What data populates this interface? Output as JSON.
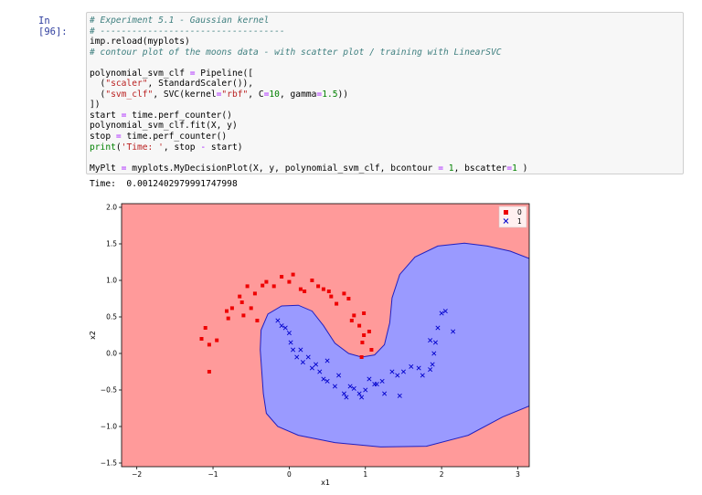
{
  "cell": {
    "prompt": "In [96]:",
    "code_lines": [
      {
        "tokens": [
          {
            "t": "# Experiment 5.1 - Gaussian kernel",
            "c": "cm"
          }
        ]
      },
      {
        "tokens": [
          {
            "t": "# -----------------------------------",
            "c": "cm"
          }
        ]
      },
      {
        "tokens": [
          {
            "t": "imp.reload(myplots)",
            "c": ""
          }
        ]
      },
      {
        "tokens": [
          {
            "t": "# contour plot of the moons data - with scatter plot / training with LinearSVC",
            "c": "cm"
          }
        ]
      },
      {
        "tokens": [
          {
            "t": "",
            "c": ""
          }
        ]
      },
      {
        "tokens": [
          {
            "t": "polynomial_svm_clf ",
            "c": ""
          },
          {
            "t": "=",
            "c": "op"
          },
          {
            "t": " Pipeline([",
            "c": ""
          }
        ]
      },
      {
        "tokens": [
          {
            "t": "  (",
            "c": ""
          },
          {
            "t": "\"scaler\"",
            "c": "st"
          },
          {
            "t": ", StandardScaler()),",
            "c": ""
          }
        ]
      },
      {
        "tokens": [
          {
            "t": "  (",
            "c": ""
          },
          {
            "t": "\"svm_clf\"",
            "c": "st"
          },
          {
            "t": ", SVC(kernel",
            "c": ""
          },
          {
            "t": "=",
            "c": "op"
          },
          {
            "t": "\"rbf\"",
            "c": "st"
          },
          {
            "t": ", C",
            "c": ""
          },
          {
            "t": "=",
            "c": "op"
          },
          {
            "t": "10",
            "c": "nm"
          },
          {
            "t": ", gamma",
            "c": ""
          },
          {
            "t": "=",
            "c": "op"
          },
          {
            "t": "1.5",
            "c": "nm"
          },
          {
            "t": "))",
            "c": ""
          }
        ]
      },
      {
        "tokens": [
          {
            "t": "])",
            "c": ""
          }
        ]
      },
      {
        "tokens": [
          {
            "t": "start ",
            "c": ""
          },
          {
            "t": "=",
            "c": "op"
          },
          {
            "t": " time.perf_counter()",
            "c": ""
          }
        ]
      },
      {
        "tokens": [
          {
            "t": "polynomial_svm_clf.fit(X, y)",
            "c": ""
          }
        ]
      },
      {
        "tokens": [
          {
            "t": "stop ",
            "c": ""
          },
          {
            "t": "=",
            "c": "op"
          },
          {
            "t": " time.perf_counter()",
            "c": ""
          }
        ]
      },
      {
        "tokens": [
          {
            "t": "print",
            "c": "kw"
          },
          {
            "t": "(",
            "c": ""
          },
          {
            "t": "'Time: '",
            "c": "st"
          },
          {
            "t": ", stop ",
            "c": ""
          },
          {
            "t": "-",
            "c": "op"
          },
          {
            "t": " start)",
            "c": ""
          }
        ]
      },
      {
        "tokens": [
          {
            "t": "",
            "c": ""
          }
        ]
      },
      {
        "tokens": [
          {
            "t": "MyPlt ",
            "c": ""
          },
          {
            "t": "=",
            "c": "op"
          },
          {
            "t": " myplots.MyDecisionPlot(X, y, polynomial_svm_clf, bcontour ",
            "c": ""
          },
          {
            "t": "=",
            "c": "op"
          },
          {
            "t": " ",
            "c": ""
          },
          {
            "t": "1",
            "c": "nm"
          },
          {
            "t": ", bscatter",
            "c": ""
          },
          {
            "t": "=",
            "c": "op"
          },
          {
            "t": "1",
            "c": "nm"
          },
          {
            "t": " )",
            "c": ""
          }
        ]
      }
    ],
    "output_text": "Time:  0.0012402979991747998"
  },
  "colors": {
    "class0_region": "#ff9a9a",
    "class1_region": "#9a9aff",
    "boundary": "#2020c0",
    "class0_marker": "#ee0000",
    "class1_marker": "#0000cc"
  },
  "chart_data": {
    "type": "scatter",
    "title": "",
    "xlabel": "x1",
    "ylabel": "x2",
    "xlim": [
      -2.2,
      3.15
    ],
    "ylim": [
      -1.55,
      2.05
    ],
    "xticks": [
      -2,
      -1,
      0,
      1,
      2,
      3
    ],
    "yticks": [
      -1.5,
      -1.0,
      -0.5,
      0.0,
      0.5,
      1.0,
      1.5,
      2.0
    ],
    "xtick_labels": [
      "−2",
      "−1",
      "0",
      "1",
      "2",
      "3"
    ],
    "ytick_labels": [
      "−1.5",
      "−1.0",
      "−0.5",
      "0.0",
      "0.5",
      "1.0",
      "1.5",
      "2.0"
    ],
    "legend": {
      "position": "top-right",
      "entries": [
        {
          "label": "0",
          "marker": "square"
        },
        {
          "label": "1",
          "marker": "x"
        }
      ]
    },
    "grid": false,
    "decision_region_class1": [
      [
        3.15,
        1.3
      ],
      [
        2.9,
        1.4
      ],
      [
        2.6,
        1.47
      ],
      [
        2.3,
        1.51
      ],
      [
        1.95,
        1.47
      ],
      [
        1.65,
        1.32
      ],
      [
        1.45,
        1.08
      ],
      [
        1.35,
        0.76
      ],
      [
        1.32,
        0.42
      ],
      [
        1.25,
        0.12
      ],
      [
        1.12,
        -0.02
      ],
      [
        0.95,
        -0.05
      ],
      [
        0.78,
        0.0
      ],
      [
        0.6,
        0.14
      ],
      [
        0.45,
        0.38
      ],
      [
        0.3,
        0.58
      ],
      [
        0.12,
        0.66
      ],
      [
        -0.1,
        0.65
      ],
      [
        -0.28,
        0.54
      ],
      [
        -0.37,
        0.32
      ],
      [
        -0.38,
        0.05
      ],
      [
        -0.36,
        -0.25
      ],
      [
        -0.34,
        -0.55
      ],
      [
        -0.3,
        -0.82
      ],
      [
        -0.15,
        -1.0
      ],
      [
        0.12,
        -1.12
      ],
      [
        0.6,
        -1.22
      ],
      [
        1.2,
        -1.28
      ],
      [
        1.8,
        -1.27
      ],
      [
        2.35,
        -1.12
      ],
      [
        2.8,
        -0.87
      ],
      [
        3.15,
        -0.72
      ]
    ],
    "series": [
      {
        "name": "0",
        "marker": "square",
        "points": [
          [
            -1.1,
            0.35
          ],
          [
            -1.15,
            0.2
          ],
          [
            -1.05,
            0.12
          ],
          [
            -0.95,
            0.18
          ],
          [
            -1.05,
            -0.25
          ],
          [
            -0.82,
            0.58
          ],
          [
            -0.8,
            0.48
          ],
          [
            -0.75,
            0.62
          ],
          [
            -0.65,
            0.78
          ],
          [
            -0.62,
            0.7
          ],
          [
            -0.55,
            0.92
          ],
          [
            -0.45,
            0.82
          ],
          [
            -0.35,
            0.93
          ],
          [
            -0.3,
            0.98
          ],
          [
            -0.2,
            0.92
          ],
          [
            -0.1,
            1.05
          ],
          [
            0.0,
            0.98
          ],
          [
            0.05,
            1.08
          ],
          [
            0.15,
            0.88
          ],
          [
            0.2,
            0.85
          ],
          [
            0.3,
            1.0
          ],
          [
            0.38,
            0.92
          ],
          [
            0.45,
            0.88
          ],
          [
            0.52,
            0.85
          ],
          [
            0.55,
            0.78
          ],
          [
            0.62,
            0.68
          ],
          [
            0.72,
            0.82
          ],
          [
            0.78,
            0.75
          ],
          [
            0.85,
            0.52
          ],
          [
            0.82,
            0.45
          ],
          [
            0.92,
            0.38
          ],
          [
            0.98,
            0.25
          ],
          [
            0.96,
            0.15
          ],
          [
            0.98,
            0.55
          ],
          [
            1.05,
            0.3
          ],
          [
            0.95,
            -0.05
          ],
          [
            1.08,
            0.05
          ],
          [
            -0.6,
            0.52
          ],
          [
            -0.5,
            0.62
          ],
          [
            -0.42,
            0.45
          ]
        ]
      },
      {
        "name": "1",
        "marker": "x",
        "points": [
          [
            -0.15,
            0.45
          ],
          [
            -0.1,
            0.38
          ],
          [
            -0.05,
            0.35
          ],
          [
            0.0,
            0.28
          ],
          [
            0.02,
            0.15
          ],
          [
            0.05,
            0.05
          ],
          [
            0.1,
            -0.05
          ],
          [
            0.18,
            -0.12
          ],
          [
            0.25,
            -0.05
          ],
          [
            0.3,
            -0.2
          ],
          [
            0.4,
            -0.25
          ],
          [
            0.45,
            -0.35
          ],
          [
            0.5,
            -0.38
          ],
          [
            0.6,
            -0.45
          ],
          [
            0.65,
            -0.3
          ],
          [
            0.72,
            -0.55
          ],
          [
            0.8,
            -0.45
          ],
          [
            0.85,
            -0.48
          ],
          [
            0.92,
            -0.55
          ],
          [
            1.0,
            -0.5
          ],
          [
            1.05,
            -0.35
          ],
          [
            1.12,
            -0.42
          ],
          [
            1.22,
            -0.38
          ],
          [
            1.35,
            -0.25
          ],
          [
            1.42,
            -0.3
          ],
          [
            1.5,
            -0.25
          ],
          [
            1.6,
            -0.18
          ],
          [
            1.7,
            -0.2
          ],
          [
            1.75,
            -0.3
          ],
          [
            1.85,
            -0.22
          ],
          [
            1.88,
            -0.15
          ],
          [
            1.9,
            0.0
          ],
          [
            1.92,
            0.15
          ],
          [
            1.95,
            0.35
          ],
          [
            2.0,
            0.55
          ],
          [
            2.05,
            0.58
          ],
          [
            2.15,
            0.3
          ],
          [
            1.85,
            0.18
          ],
          [
            1.25,
            -0.55
          ],
          [
            1.45,
            -0.58
          ],
          [
            0.75,
            -0.6
          ],
          [
            0.95,
            -0.6
          ],
          [
            1.15,
            -0.42
          ],
          [
            0.35,
            -0.15
          ],
          [
            0.15,
            0.05
          ],
          [
            0.5,
            -0.1
          ]
        ]
      }
    ]
  }
}
